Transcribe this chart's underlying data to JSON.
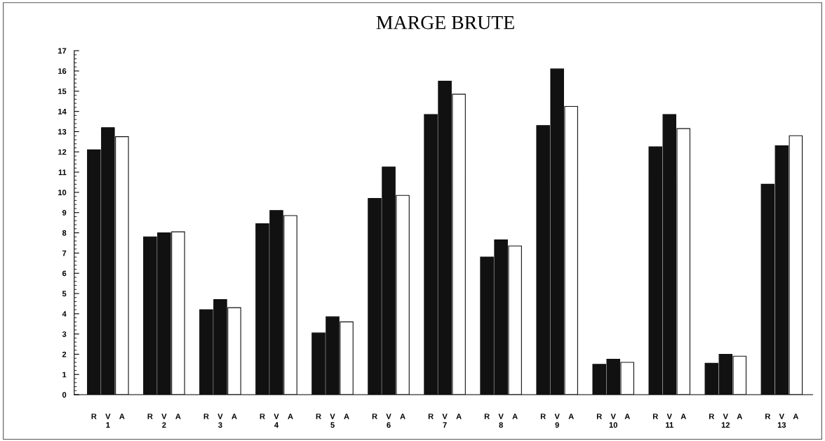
{
  "chart_data": {
    "type": "bar",
    "title": "MARGE BRUTE",
    "categories": [
      "1",
      "2",
      "3",
      "4",
      "5",
      "6",
      "7",
      "8",
      "9",
      "10",
      "11",
      "12",
      "13"
    ],
    "series": [
      {
        "name": "R",
        "color": "#111111",
        "values": [
          12.1,
          7.8,
          4.2,
          8.45,
          3.05,
          9.7,
          13.85,
          6.8,
          13.3,
          1.5,
          12.25,
          1.55,
          10.4
        ]
      },
      {
        "name": "V",
        "color": "#111111",
        "values": [
          13.2,
          8.0,
          4.7,
          9.1,
          3.85,
          11.25,
          15.5,
          7.65,
          16.1,
          1.75,
          13.85,
          2.0,
          12.3
        ]
      },
      {
        "name": "A",
        "color": "#ffffff",
        "values": [
          12.75,
          8.05,
          4.3,
          8.85,
          3.6,
          9.85,
          14.85,
          7.35,
          14.25,
          1.6,
          13.15,
          1.9,
          12.8
        ]
      }
    ],
    "ylim": [
      0,
      17
    ],
    "yticks": [
      0,
      1,
      2,
      3,
      4,
      5,
      6,
      7,
      8,
      9,
      10,
      11,
      12,
      13,
      14,
      15,
      16,
      17
    ],
    "grid": false,
    "legend": false
  }
}
